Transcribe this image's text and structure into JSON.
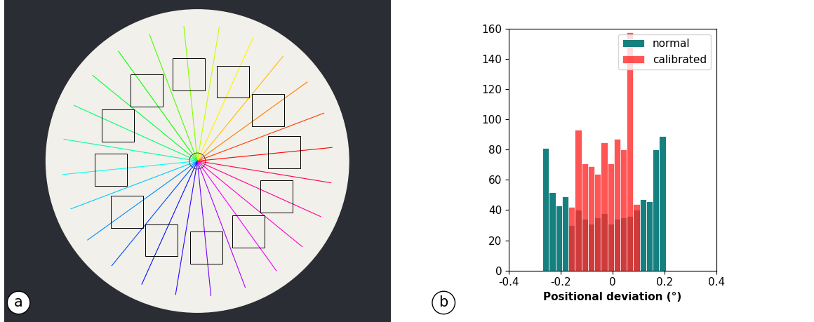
{
  "image": {
    "panel_label": "a"
  },
  "chart_data": {
    "type": "histogram",
    "panel_label": "b",
    "x_label": "Positional deviation (°)",
    "bins": [
      -0.27,
      -0.245,
      -0.22,
      -0.195,
      -0.17,
      -0.145,
      -0.12,
      -0.095,
      -0.07,
      -0.045,
      -0.02,
      0.005,
      0.03,
      0.055,
      0.08,
      0.105,
      0.13,
      0.155,
      0.18,
      0.205
    ],
    "series": [
      {
        "name": "normal",
        "color": "#168080",
        "values": [
          81,
          52,
          43,
          49,
          30,
          40,
          34,
          31,
          35,
          38,
          31,
          34,
          35,
          36,
          40,
          47,
          46,
          80,
          89
        ]
      },
      {
        "name": "calibrated",
        "color": "#ff2a2a",
        "values": [
          0,
          0,
          0,
          0,
          42,
          93,
          71,
          69,
          64,
          85,
          71,
          87,
          80,
          158,
          44,
          0,
          0,
          0,
          0
        ]
      }
    ],
    "xlim": [
      -0.4,
      0.4
    ],
    "xticks": [
      -0.4,
      -0.2,
      0,
      0.2,
      0.4
    ],
    "ylim": [
      0,
      160
    ],
    "yticks": [
      0,
      20,
      40,
      60,
      80,
      100,
      120,
      140,
      160
    ],
    "legend": "upper right"
  }
}
